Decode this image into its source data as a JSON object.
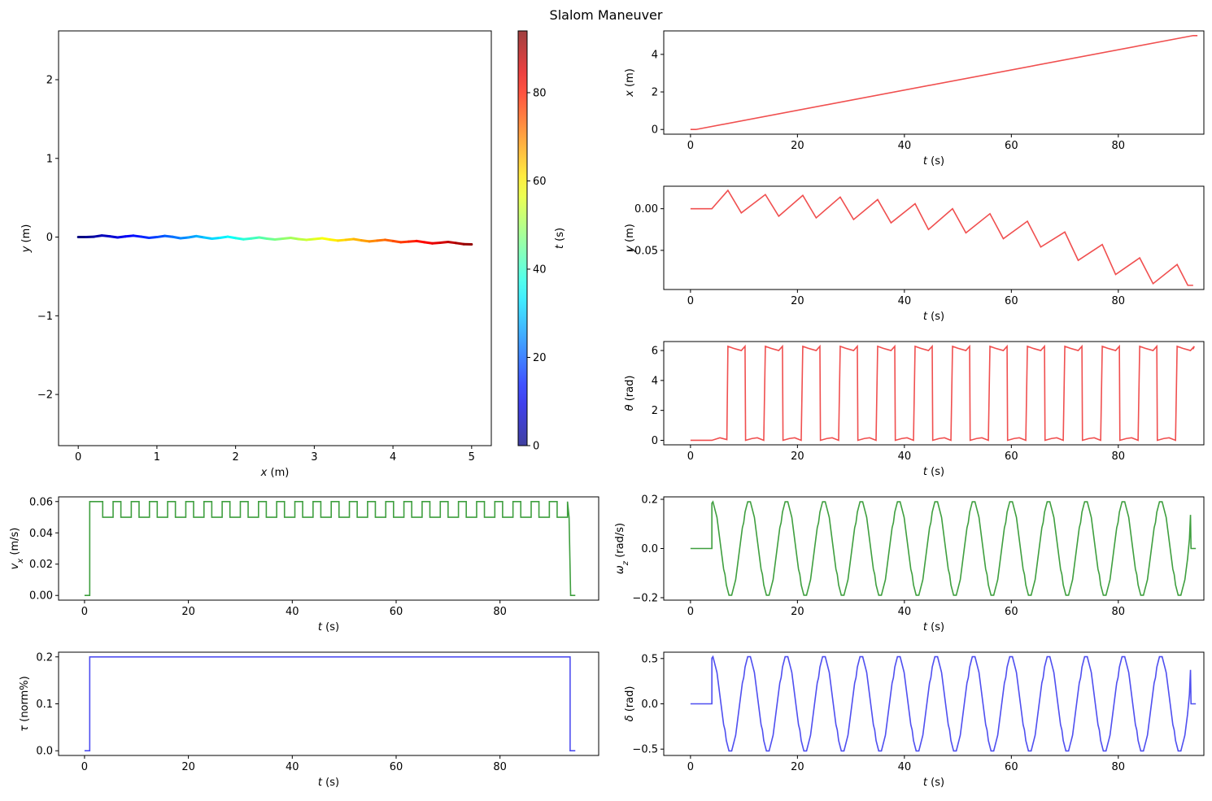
{
  "figure": {
    "title": "Slalom Maneuver"
  },
  "chart_data": [
    {
      "id": "traj",
      "type": "line",
      "xlabel": "x (m)",
      "ylabel": "y (m)",
      "xlim": [
        -0.25,
        5.25
      ],
      "ylim": [
        -2.65,
        2.62
      ],
      "xticks": [
        0,
        1,
        2,
        3,
        4,
        5
      ],
      "yticks": [
        -2,
        -1,
        0,
        1,
        2
      ],
      "colormap": "jet",
      "colorbar": {
        "label": "t (s)",
        "range": [
          0,
          94
        ],
        "ticks": [
          0,
          20,
          40,
          60,
          80
        ]
      },
      "x": [
        0,
        0.1,
        0.2,
        0.3,
        0.4,
        0.5,
        0.6,
        0.7,
        0.8,
        0.9,
        1.0,
        1.1,
        1.2,
        1.3,
        1.4,
        1.5,
        1.6,
        1.7,
        1.8,
        1.9,
        2.0,
        2.1,
        2.2,
        2.3,
        2.4,
        2.5,
        2.6,
        2.7,
        2.8,
        2.9,
        3.0,
        3.1,
        3.2,
        3.3,
        3.4,
        3.5,
        3.6,
        3.7,
        3.8,
        3.9,
        4.0,
        4.1,
        4.2,
        4.3,
        4.4,
        4.5,
        4.6,
        4.7,
        4.8,
        4.9,
        5.0
      ],
      "y": [
        0,
        0,
        0.005,
        0.02,
        0.01,
        -0.005,
        0.008,
        0.018,
        0.005,
        -0.01,
        0.0,
        0.015,
        0.003,
        -0.015,
        -0.005,
        0.012,
        -0.005,
        -0.02,
        -0.01,
        0.005,
        -0.012,
        -0.028,
        -0.018,
        -0.005,
        -0.02,
        -0.03,
        -0.02,
        -0.01,
        -0.025,
        -0.035,
        -0.025,
        -0.015,
        -0.032,
        -0.045,
        -0.035,
        -0.025,
        -0.042,
        -0.055,
        -0.045,
        -0.035,
        -0.05,
        -0.065,
        -0.058,
        -0.05,
        -0.065,
        -0.08,
        -0.072,
        -0.062,
        -0.075,
        -0.09,
        -0.092
      ],
      "t": [
        0,
        1.88,
        3.76,
        5.64,
        7.52,
        9.4,
        11.28,
        13.16,
        15.04,
        16.92,
        18.8,
        20.68,
        22.56,
        24.44,
        26.32,
        28.2,
        30.08,
        31.96,
        33.84,
        35.72,
        37.6,
        39.48,
        41.36,
        43.24,
        45.12,
        47.0,
        48.88,
        50.76,
        52.64,
        54.52,
        56.4,
        58.28,
        60.16,
        62.04,
        63.92,
        65.8,
        67.68,
        69.56,
        71.44,
        73.32,
        75.2,
        77.08,
        78.96,
        80.84,
        82.72,
        84.6,
        86.48,
        88.36,
        90.24,
        92.12,
        94.0
      ]
    },
    {
      "id": "x_t",
      "type": "line",
      "color": "#f04f4f",
      "xlabel": "t (s)",
      "ylabel": "x (m)",
      "xlim": [
        -5,
        96
      ],
      "ylim": [
        -0.25,
        5.25
      ],
      "xticks": [
        0,
        20,
        40,
        60,
        80
      ],
      "yticks": [
        0,
        2,
        4
      ],
      "series": [
        {
          "x": [
            0,
            1,
            94,
            94.8
          ],
          "y": [
            0,
            0,
            5.0,
            5.0
          ]
        }
      ]
    },
    {
      "id": "y_t",
      "type": "line",
      "color": "#f04f4f",
      "xlabel": "t (s)",
      "ylabel": "y (m)",
      "xlim": [
        -5,
        96
      ],
      "ylim": [
        -0.097,
        0.027
      ],
      "xticks": [
        0,
        20,
        40,
        60,
        80
      ],
      "yticks": [
        0.0,
        -0.05
      ],
      "ytick_labels": [
        "0.00",
        "−0.05"
      ],
      "series": [
        {
          "x": [
            0,
            4,
            7,
            9.5,
            14,
            16.5,
            21,
            23.5,
            28,
            30.5,
            35,
            37.5,
            42,
            44.5,
            49,
            51.5,
            56,
            58.5,
            63,
            65.5,
            70,
            72.5,
            77,
            79.5,
            84,
            86.5,
            91,
            93,
            94
          ],
          "y": [
            0,
            0,
            0.022,
            -0.005,
            0.017,
            -0.009,
            0.016,
            -0.011,
            0.014,
            -0.013,
            0.011,
            -0.017,
            0.006,
            -0.025,
            0.0,
            -0.029,
            -0.006,
            -0.036,
            -0.015,
            -0.046,
            -0.028,
            -0.062,
            -0.043,
            -0.079,
            -0.059,
            -0.09,
            -0.067,
            -0.092,
            -0.092
          ]
        }
      ]
    },
    {
      "id": "theta_t",
      "type": "line",
      "color": "#f04f4f",
      "xlabel": "t (s)",
      "ylabel": "θ (rad)",
      "xlim": [
        -5,
        96
      ],
      "ylim": [
        -0.3,
        6.6
      ],
      "xticks": [
        0,
        20,
        40,
        60,
        80
      ],
      "yticks": [
        0,
        2,
        4,
        6
      ],
      "period": 7,
      "high_value": 6.25,
      "low_value": 0.17,
      "series": [
        {
          "x": [],
          "y": []
        }
      ]
    },
    {
      "id": "vx_t",
      "type": "line",
      "color": "#3f9f3f",
      "xlabel": "t (s)",
      "ylabel": "v_x (m/s)",
      "xlim": [
        -5,
        99
      ],
      "ylim": [
        -0.003,
        0.063
      ],
      "xticks": [
        0,
        20,
        40,
        60,
        80
      ],
      "yticks": [
        0.0,
        0.02,
        0.04,
        0.06
      ],
      "ytick_labels": [
        "0.00",
        "0.02",
        "0.04",
        "0.06"
      ],
      "levels": [
        0.0,
        0.05,
        0.06
      ],
      "series": [
        {
          "x": [],
          "y": []
        }
      ]
    },
    {
      "id": "wz_t",
      "type": "line",
      "color": "#3f9f3f",
      "xlabel": "t (s)",
      "ylabel": "ω_z (rad/s)",
      "xlim": [
        -5,
        96
      ],
      "ylim": [
        -0.21,
        0.21
      ],
      "xticks": [
        0,
        20,
        40,
        60,
        80
      ],
      "yticks": [
        -0.2,
        0.0,
        0.2
      ],
      "ytick_labels": [
        "−0.2",
        "0.0",
        "0.2"
      ],
      "amplitude": 0.19,
      "period": 7,
      "series": [
        {
          "x": [],
          "y": []
        }
      ]
    },
    {
      "id": "tau_t",
      "type": "line",
      "color": "#4f4ff0",
      "xlabel": "t (s)",
      "ylabel": "τ (norm%)",
      "xlim": [
        -5,
        99
      ],
      "ylim": [
        -0.01,
        0.21
      ],
      "xticks": [
        0,
        20,
        40,
        60,
        80
      ],
      "yticks": [
        0.0,
        0.1,
        0.2
      ],
      "ytick_labels": [
        "0.0",
        "0.1",
        "0.2"
      ],
      "series": [
        {
          "x": [
            0,
            1,
            1,
            93.5,
            93.5,
            94.5
          ],
          "y": [
            0,
            0,
            0.2,
            0.2,
            0,
            0
          ]
        }
      ]
    },
    {
      "id": "delta_t",
      "type": "line",
      "color": "#4f4ff0",
      "xlabel": "t (s)",
      "ylabel": "δ (rad)",
      "xlim": [
        -5,
        96
      ],
      "ylim": [
        -0.57,
        0.57
      ],
      "xticks": [
        0,
        20,
        40,
        60,
        80
      ],
      "yticks": [
        -0.5,
        0.0,
        0.5
      ],
      "ytick_labels": [
        "−0.5",
        "0.0",
        "0.5"
      ],
      "amplitude": 0.52,
      "period": 7,
      "series": [
        {
          "x": [],
          "y": []
        }
      ]
    }
  ]
}
